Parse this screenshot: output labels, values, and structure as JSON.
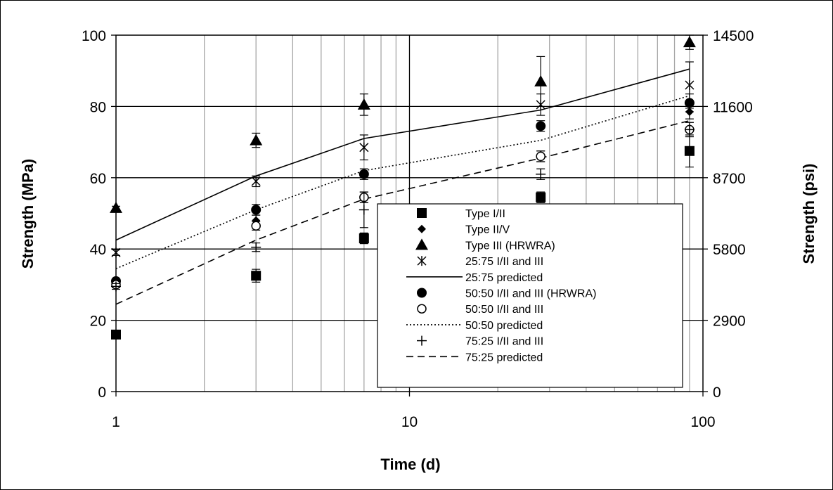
{
  "chart_data": {
    "type": "scatter",
    "xlabel": "Time (d)",
    "ylabel": "Strength (MPa)",
    "y2label": "Strength (psi)",
    "xscale": "log",
    "xlim": [
      1,
      100
    ],
    "ylim": [
      0,
      100
    ],
    "y2lim": [
      0,
      14500
    ],
    "x_ticks": [
      "1",
      "10",
      "100"
    ],
    "y_ticks": [
      "0",
      "20",
      "40",
      "60",
      "80",
      "100"
    ],
    "y2_ticks": [
      "0",
      "2900",
      "5800",
      "8700",
      "11600",
      "14500"
    ],
    "grid": true,
    "legend_position": "lower-right",
    "series": [
      {
        "name": "Type I/II",
        "marker": "square",
        "x": [
          1,
          3,
          7,
          28,
          90
        ],
        "y": [
          16,
          32.5,
          43,
          54.5,
          67.5
        ],
        "err": [
          0.8,
          1.8,
          1.5,
          1.5,
          4.5
        ]
      },
      {
        "name": "Type II/V",
        "marker": "diamond",
        "x": [
          1,
          3,
          7,
          28,
          90
        ],
        "y": [
          30.5,
          48,
          54.5,
          66,
          78.5
        ],
        "err": [
          0.8,
          1.5,
          1.5,
          1.5,
          2
        ]
      },
      {
        "name": "Type III (HRWRA)",
        "marker": "triangle",
        "x": [
          1,
          3,
          7,
          28,
          90
        ],
        "y": [
          51.5,
          70.5,
          80.5,
          87,
          98
        ],
        "err": [
          0.5,
          2,
          3,
          7,
          2
        ]
      },
      {
        "name": "25:75 I/II and III",
        "marker": "star",
        "x": [
          1,
          3,
          7,
          28,
          90
        ],
        "y": [
          39,
          59,
          68.5,
          80.5,
          86
        ],
        "err": [
          0.8,
          1.5,
          3.5,
          3,
          6.5
        ]
      },
      {
        "name": "25:75 predicted",
        "line": "solid",
        "x": [
          1,
          3,
          7,
          28,
          90
        ],
        "y": [
          42.5,
          60.5,
          71,
          79,
          90.5
        ]
      },
      {
        "name": "50:50 I/II and III (HRWRA)",
        "marker": "filled-circle",
        "x": [
          1,
          3,
          7,
          28,
          90
        ],
        "y": [
          31,
          51,
          61,
          74.5,
          81
        ],
        "err": [
          0.5,
          1.5,
          1.5,
          1.5,
          2.5
        ]
      },
      {
        "name": "50:50 I/II and III",
        "marker": "open-circle",
        "x": [
          1,
          3,
          7,
          28,
          90
        ],
        "y": [
          30,
          46.5,
          54.5,
          66,
          73.5
        ],
        "err": [
          0.8,
          1.2,
          1.5,
          1.5,
          2
        ]
      },
      {
        "name": "50:50 predicted",
        "line": "dotted",
        "x": [
          1,
          3,
          7,
          28,
          90
        ],
        "y": [
          34.5,
          51,
          62,
          70.5,
          83
        ]
      },
      {
        "name": "75:25 I/II and III",
        "marker": "plus",
        "x": [
          1,
          3,
          7,
          28,
          90
        ],
        "y": [
          29.5,
          40.5,
          51,
          61,
          73.5
        ],
        "err": [
          0.8,
          1.2,
          5,
          1.5,
          2
        ]
      },
      {
        "name": "75:25 predicted",
        "line": "dashed",
        "x": [
          1,
          3,
          7,
          28,
          90
        ],
        "y": [
          24.5,
          42.5,
          54,
          65.5,
          76
        ]
      }
    ]
  }
}
